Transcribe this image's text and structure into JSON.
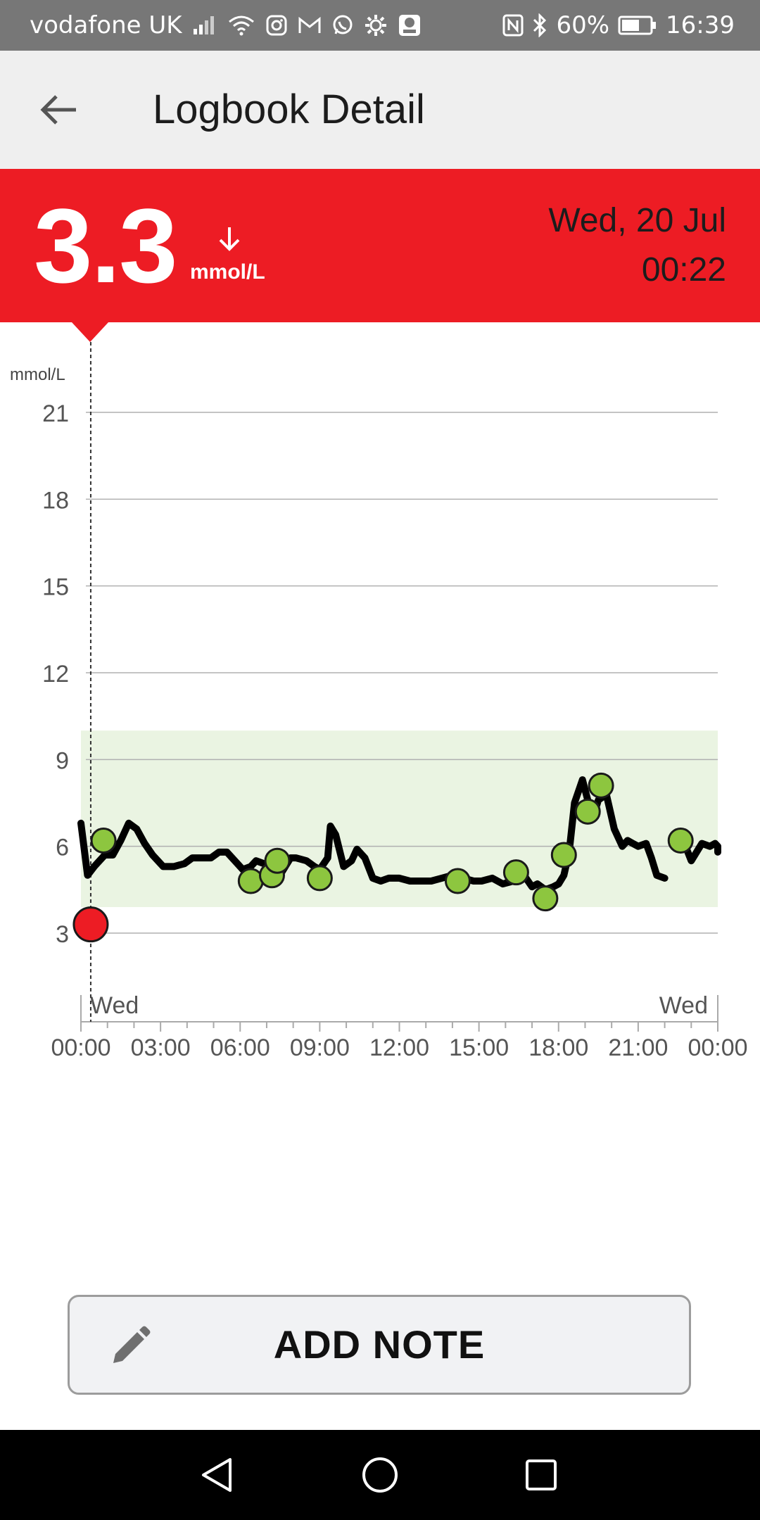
{
  "status_bar": {
    "carrier": "vodafone UK",
    "battery": "60%",
    "time": "16:39",
    "icons_left": [
      "signal-icon",
      "wifi-icon",
      "instagram-icon",
      "gmail-icon",
      "whatsapp-icon",
      "settings-gear-icon",
      "lidl-plus-icon"
    ],
    "icons_right": [
      "nfc-icon",
      "bluetooth-icon",
      "battery-icon"
    ]
  },
  "app_bar": {
    "back_icon": "arrow-left-icon",
    "title": "Logbook Detail"
  },
  "reading": {
    "value": "3.3",
    "unit": "mmol/L",
    "trend": "arrow-down-icon",
    "date": "Wed, 20 Jul",
    "time": "00:22",
    "banner_color": "#ed1c24"
  },
  "chart_data": {
    "type": "line",
    "ylabel": "mmol/L",
    "yticks": [
      3,
      6,
      9,
      12,
      15,
      18,
      21
    ],
    "ylim": [
      0,
      22.5
    ],
    "xticks": [
      "00:00",
      "03:00",
      "06:00",
      "09:00",
      "12:00",
      "15:00",
      "18:00",
      "21:00",
      "00:00"
    ],
    "xlim_hours": [
      0,
      24
    ],
    "day_labels": [
      "Wed",
      "Wed"
    ],
    "target_range": [
      3.9,
      10.0
    ],
    "target_range_color": "#eaf4e2",
    "selected_time_hours": 0.37,
    "line_color": "#000000",
    "series": [
      {
        "segments": [
          [
            [
              0,
              6.8
            ],
            [
              0.25,
              5.0
            ],
            [
              0.5,
              5.3
            ],
            [
              0.9,
              5.7
            ],
            [
              1.2,
              5.7
            ],
            [
              1.5,
              6.2
            ],
            [
              1.8,
              6.8
            ],
            [
              2.1,
              6.6
            ],
            [
              2.4,
              6.1
            ],
            [
              2.7,
              5.7
            ],
            [
              3.1,
              5.3
            ],
            [
              3.5,
              5.3
            ],
            [
              3.9,
              5.4
            ],
            [
              4.2,
              5.6
            ],
            [
              4.6,
              5.6
            ],
            [
              4.9,
              5.6
            ],
            [
              5.2,
              5.8
            ],
            [
              5.5,
              5.8
            ],
            [
              5.8,
              5.5
            ],
            [
              6.1,
              5.2
            ],
            [
              6.4,
              5.3
            ],
            [
              6.6,
              5.5
            ],
            [
              6.9,
              5.4
            ],
            [
              7.2,
              5.2
            ],
            [
              7.5,
              5.0
            ],
            [
              7.9,
              5.6
            ],
            [
              8.1,
              5.6
            ],
            [
              8.5,
              5.5
            ],
            [
              8.8,
              5.3
            ],
            [
              9.0,
              5.2
            ],
            [
              9.3,
              5.6
            ],
            [
              9.4,
              6.7
            ],
            [
              9.6,
              6.4
            ],
            [
              9.9,
              5.3
            ],
            [
              10.2,
              5.5
            ],
            [
              10.4,
              5.9
            ],
            [
              10.7,
              5.6
            ],
            [
              11.0,
              4.9
            ],
            [
              11.3,
              4.8
            ],
            [
              11.6,
              4.9
            ],
            [
              12.0,
              4.9
            ],
            [
              12.4,
              4.8
            ],
            [
              12.8,
              4.8
            ],
            [
              13.2,
              4.8
            ],
            [
              13.6,
              4.9
            ],
            [
              14.0,
              5.0
            ],
            [
              14.4,
              4.9
            ],
            [
              14.8,
              4.8
            ],
            [
              15.1,
              4.8
            ],
            [
              15.5,
              4.9
            ],
            [
              15.9,
              4.7
            ],
            [
              16.3,
              4.8
            ],
            [
              16.7,
              5.0
            ],
            [
              17.0,
              4.6
            ],
            [
              17.2,
              4.7
            ],
            [
              17.5,
              4.5
            ],
            [
              17.8,
              4.6
            ],
            [
              18.0,
              4.7
            ],
            [
              18.2,
              5.0
            ],
            [
              18.4,
              5.8
            ],
            [
              18.6,
              7.5
            ],
            [
              18.9,
              8.3
            ],
            [
              19.1,
              7.6
            ],
            [
              19.3,
              7.0
            ],
            [
              19.5,
              7.6
            ],
            [
              19.8,
              7.8
            ],
            [
              20.1,
              6.6
            ],
            [
              20.4,
              6.0
            ],
            [
              20.6,
              6.2
            ],
            [
              20.8,
              6.1
            ],
            [
              21.0,
              6.0
            ],
            [
              21.3,
              6.1
            ],
            [
              21.5,
              5.6
            ],
            [
              21.7,
              5.0
            ],
            [
              22.0,
              4.9
            ]
          ],
          [
            [
              22.4,
              6.2
            ],
            [
              22.7,
              6.2
            ],
            [
              23.0,
              5.5
            ],
            [
              23.4,
              6.1
            ],
            [
              23.7,
              6.0
            ],
            [
              23.9,
              6.1
            ],
            [
              24.0,
              6.0
            ],
            [
              24.15,
              5.8
            ]
          ]
        ]
      }
    ],
    "scan_points": [
      [
        0.85,
        6.2
      ],
      [
        6.4,
        4.8
      ],
      [
        7.2,
        5.0
      ],
      [
        7.4,
        5.5
      ],
      [
        9.0,
        4.9
      ],
      [
        14.2,
        4.8
      ],
      [
        16.4,
        5.1
      ],
      [
        17.5,
        4.2
      ],
      [
        18.2,
        5.7
      ],
      [
        19.1,
        7.2
      ],
      [
        19.6,
        8.1
      ],
      [
        22.6,
        6.2
      ]
    ],
    "scan_point_color": "#8dc63f",
    "selected_point": [
      0.37,
      3.3
    ],
    "selected_point_color": "#ed1c24"
  },
  "add_note": {
    "label": "ADD NOTE",
    "icon": "pencil-icon"
  },
  "nav_bar": {
    "icons": [
      "back-triangle-icon",
      "home-circle-icon",
      "recents-square-icon"
    ]
  }
}
